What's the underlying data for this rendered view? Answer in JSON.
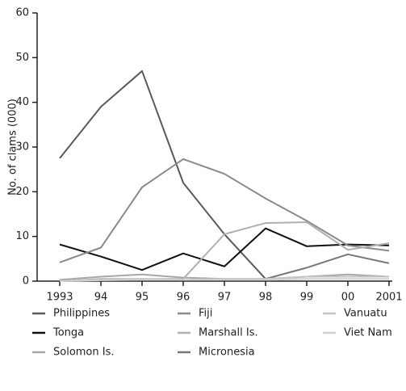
{
  "chart_data": {
    "type": "line",
    "y_label": "No. of clams (000)",
    "categories": [
      "1993",
      "94",
      "95",
      "96",
      "97",
      "98",
      "99",
      "00",
      "2001"
    ],
    "ylim": [
      0,
      60
    ],
    "yticks": [
      0,
      10,
      20,
      30,
      40,
      50,
      60
    ],
    "series": [
      {
        "name": "Philippines",
        "color": "#5a5a5a",
        "values": [
          27.5,
          39,
          47,
          22,
          10.5,
          0.5,
          null,
          null,
          null
        ]
      },
      {
        "name": "Tonga",
        "color": "#111111",
        "values": [
          8.2,
          5.5,
          2.5,
          6.2,
          3.3,
          11.8,
          7.8,
          8.2,
          8.0
        ]
      },
      {
        "name": "Solomon Is.",
        "color": "#a8a8a8",
        "values": [
          0.3,
          1,
          1.5,
          0.8,
          0.5,
          0.5,
          1,
          1.5,
          1
        ]
      },
      {
        "name": "Fiji",
        "color": "#8a8a8a",
        "values": [
          4.2,
          7.5,
          21,
          27.3,
          24,
          18.5,
          13.5,
          8,
          6.8
        ]
      },
      {
        "name": "Marshall Is.",
        "color": "#b0b0b0",
        "values": [
          0,
          0.5,
          0.5,
          0.5,
          10.5,
          13,
          13.2,
          7,
          8.5
        ]
      },
      {
        "name": "Micronesia",
        "color": "#787878",
        "values": [
          null,
          null,
          null,
          null,
          null,
          0.5,
          3,
          6,
          4
        ]
      },
      {
        "name": "Vanuatu",
        "color": "#c4c4c4",
        "values": [
          0,
          0.3,
          0.5,
          0.3,
          0.5,
          0.5,
          1,
          1,
          1
        ]
      },
      {
        "name": "Viet Nam",
        "color": "#d0d0d0",
        "values": [
          0,
          0.2,
          0.3,
          0.3,
          0.3,
          0.3,
          0.5,
          0.5,
          0.5
        ]
      }
    ]
  }
}
